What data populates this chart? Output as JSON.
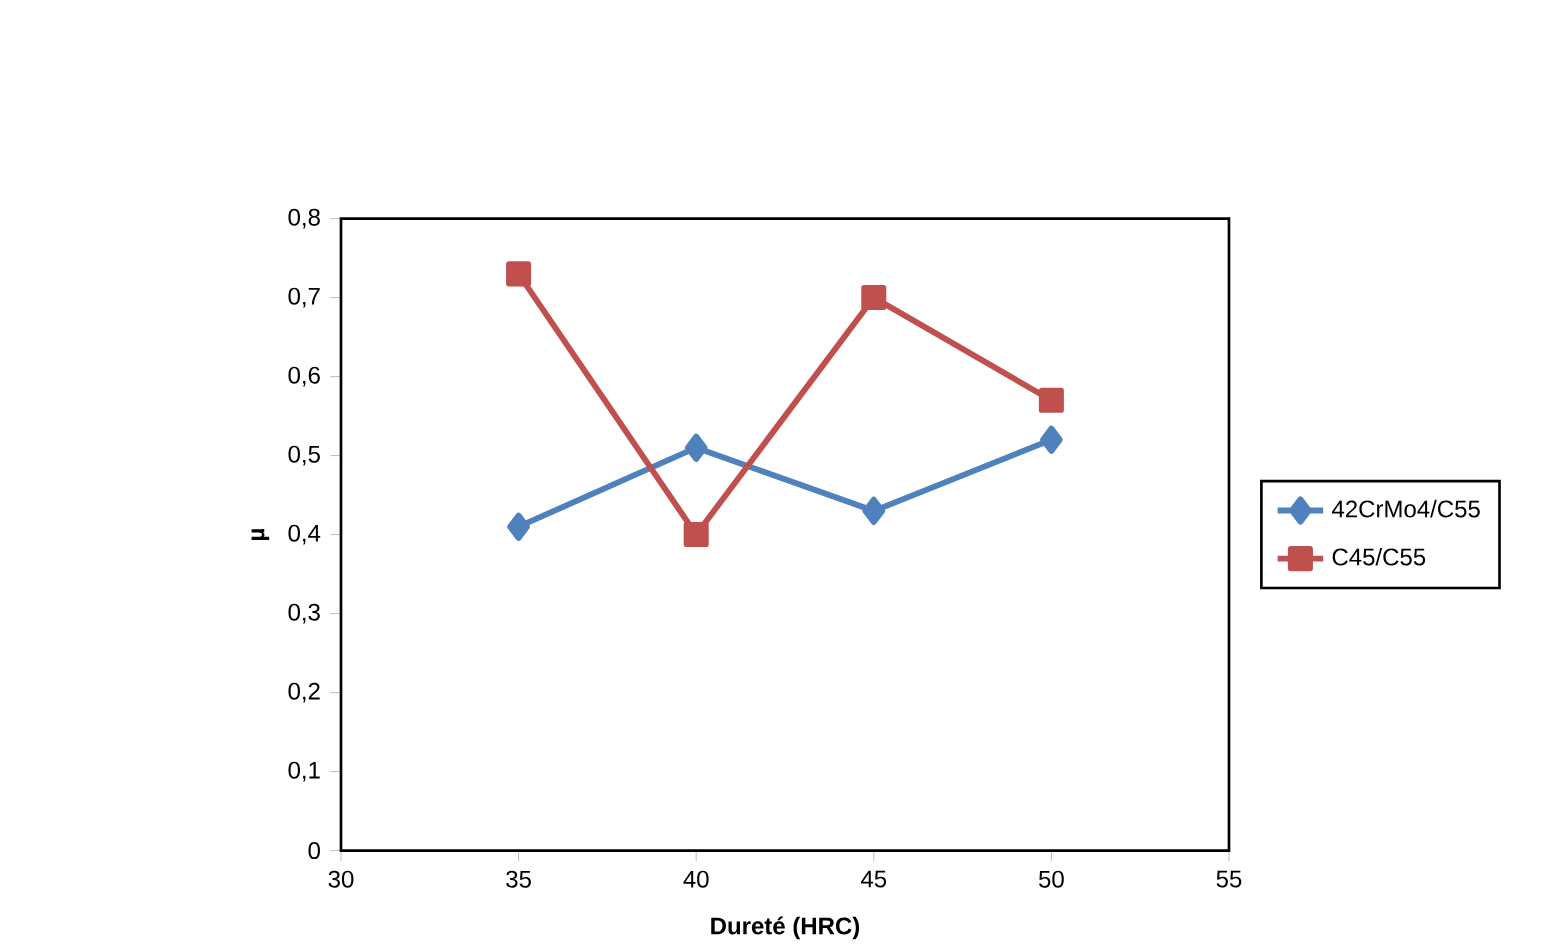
{
  "chart_data": {
    "type": "line",
    "xlabel": "Dureté (HRC)",
    "ylabel": "µ",
    "xlim": [
      30,
      55
    ],
    "xticks": [
      30,
      35,
      40,
      45,
      50,
      55
    ],
    "ylim": [
      0,
      0.8
    ],
    "yticks": [
      0,
      {
        "value": 0.1,
        "label": "0,1"
      },
      {
        "value": 0.2,
        "label": "0,2"
      },
      {
        "value": 0.3,
        "label": "0,3"
      },
      {
        "value": 0.4,
        "label": "0,4"
      },
      {
        "value": 0.5,
        "label": "0,5"
      },
      {
        "value": 0.6,
        "label": "0,6"
      },
      {
        "value": 0.7,
        "label": "0,7"
      },
      {
        "value": 0.8,
        "label": "0,8"
      }
    ],
    "x": [
      35,
      40,
      45,
      50
    ],
    "series": [
      {
        "name": "42CrMo4/C55",
        "color": "#4f81bd",
        "marker": "diamond",
        "values": [
          0.41,
          0.51,
          0.43,
          0.52
        ]
      },
      {
        "name": "C45/C55",
        "color": "#c0504d",
        "marker": "square",
        "values": [
          0.73,
          0.4,
          0.7,
          0.57
        ]
      }
    ],
    "grid": false,
    "legend": "right",
    "line_style": "solid"
  }
}
